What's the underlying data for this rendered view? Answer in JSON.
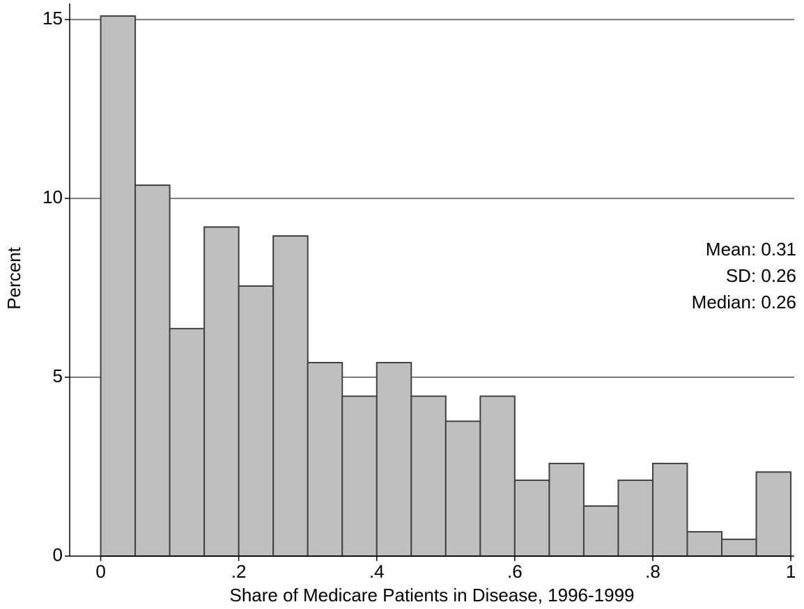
{
  "chart_data": {
    "type": "histogram",
    "x_label": "Share of Medicare Patients in Disease, 1996-1999",
    "y_label": "Percent",
    "annotations": [
      "Mean: 0.31",
      "SD: 0.26",
      "Median: 0.26"
    ],
    "bins": [
      0,
      0.05,
      0.1,
      0.15,
      0.2,
      0.25,
      0.3,
      0.35,
      0.4,
      0.45,
      0.5,
      0.55,
      0.6,
      0.65,
      0.7,
      0.75,
      0.8,
      0.85,
      0.9,
      0.95,
      1
    ],
    "values": [
      15.1,
      10.37,
      6.36,
      9.2,
      7.55,
      8.95,
      5.41,
      4.47,
      5.41,
      4.47,
      3.77,
      4.47,
      2.12,
      2.59,
      1.4,
      2.12,
      2.59,
      0.68,
      0.47,
      2.35
    ],
    "color": "#bfbfbf",
    "edge_color": "#404040",
    "xlim": [
      -0.045,
      1.005
    ],
    "xticks": [
      0,
      {
        "value": 0.2,
        "label": ".2"
      },
      {
        "value": 0.4,
        "label": ".4"
      },
      {
        "value": 0.6,
        "label": ".6"
      },
      {
        "value": 0.8,
        "label": ".8"
      },
      1
    ],
    "ylim": [
      0,
      15.45
    ],
    "yticks": [
      0,
      5,
      10,
      15
    ],
    "grid": true
  }
}
